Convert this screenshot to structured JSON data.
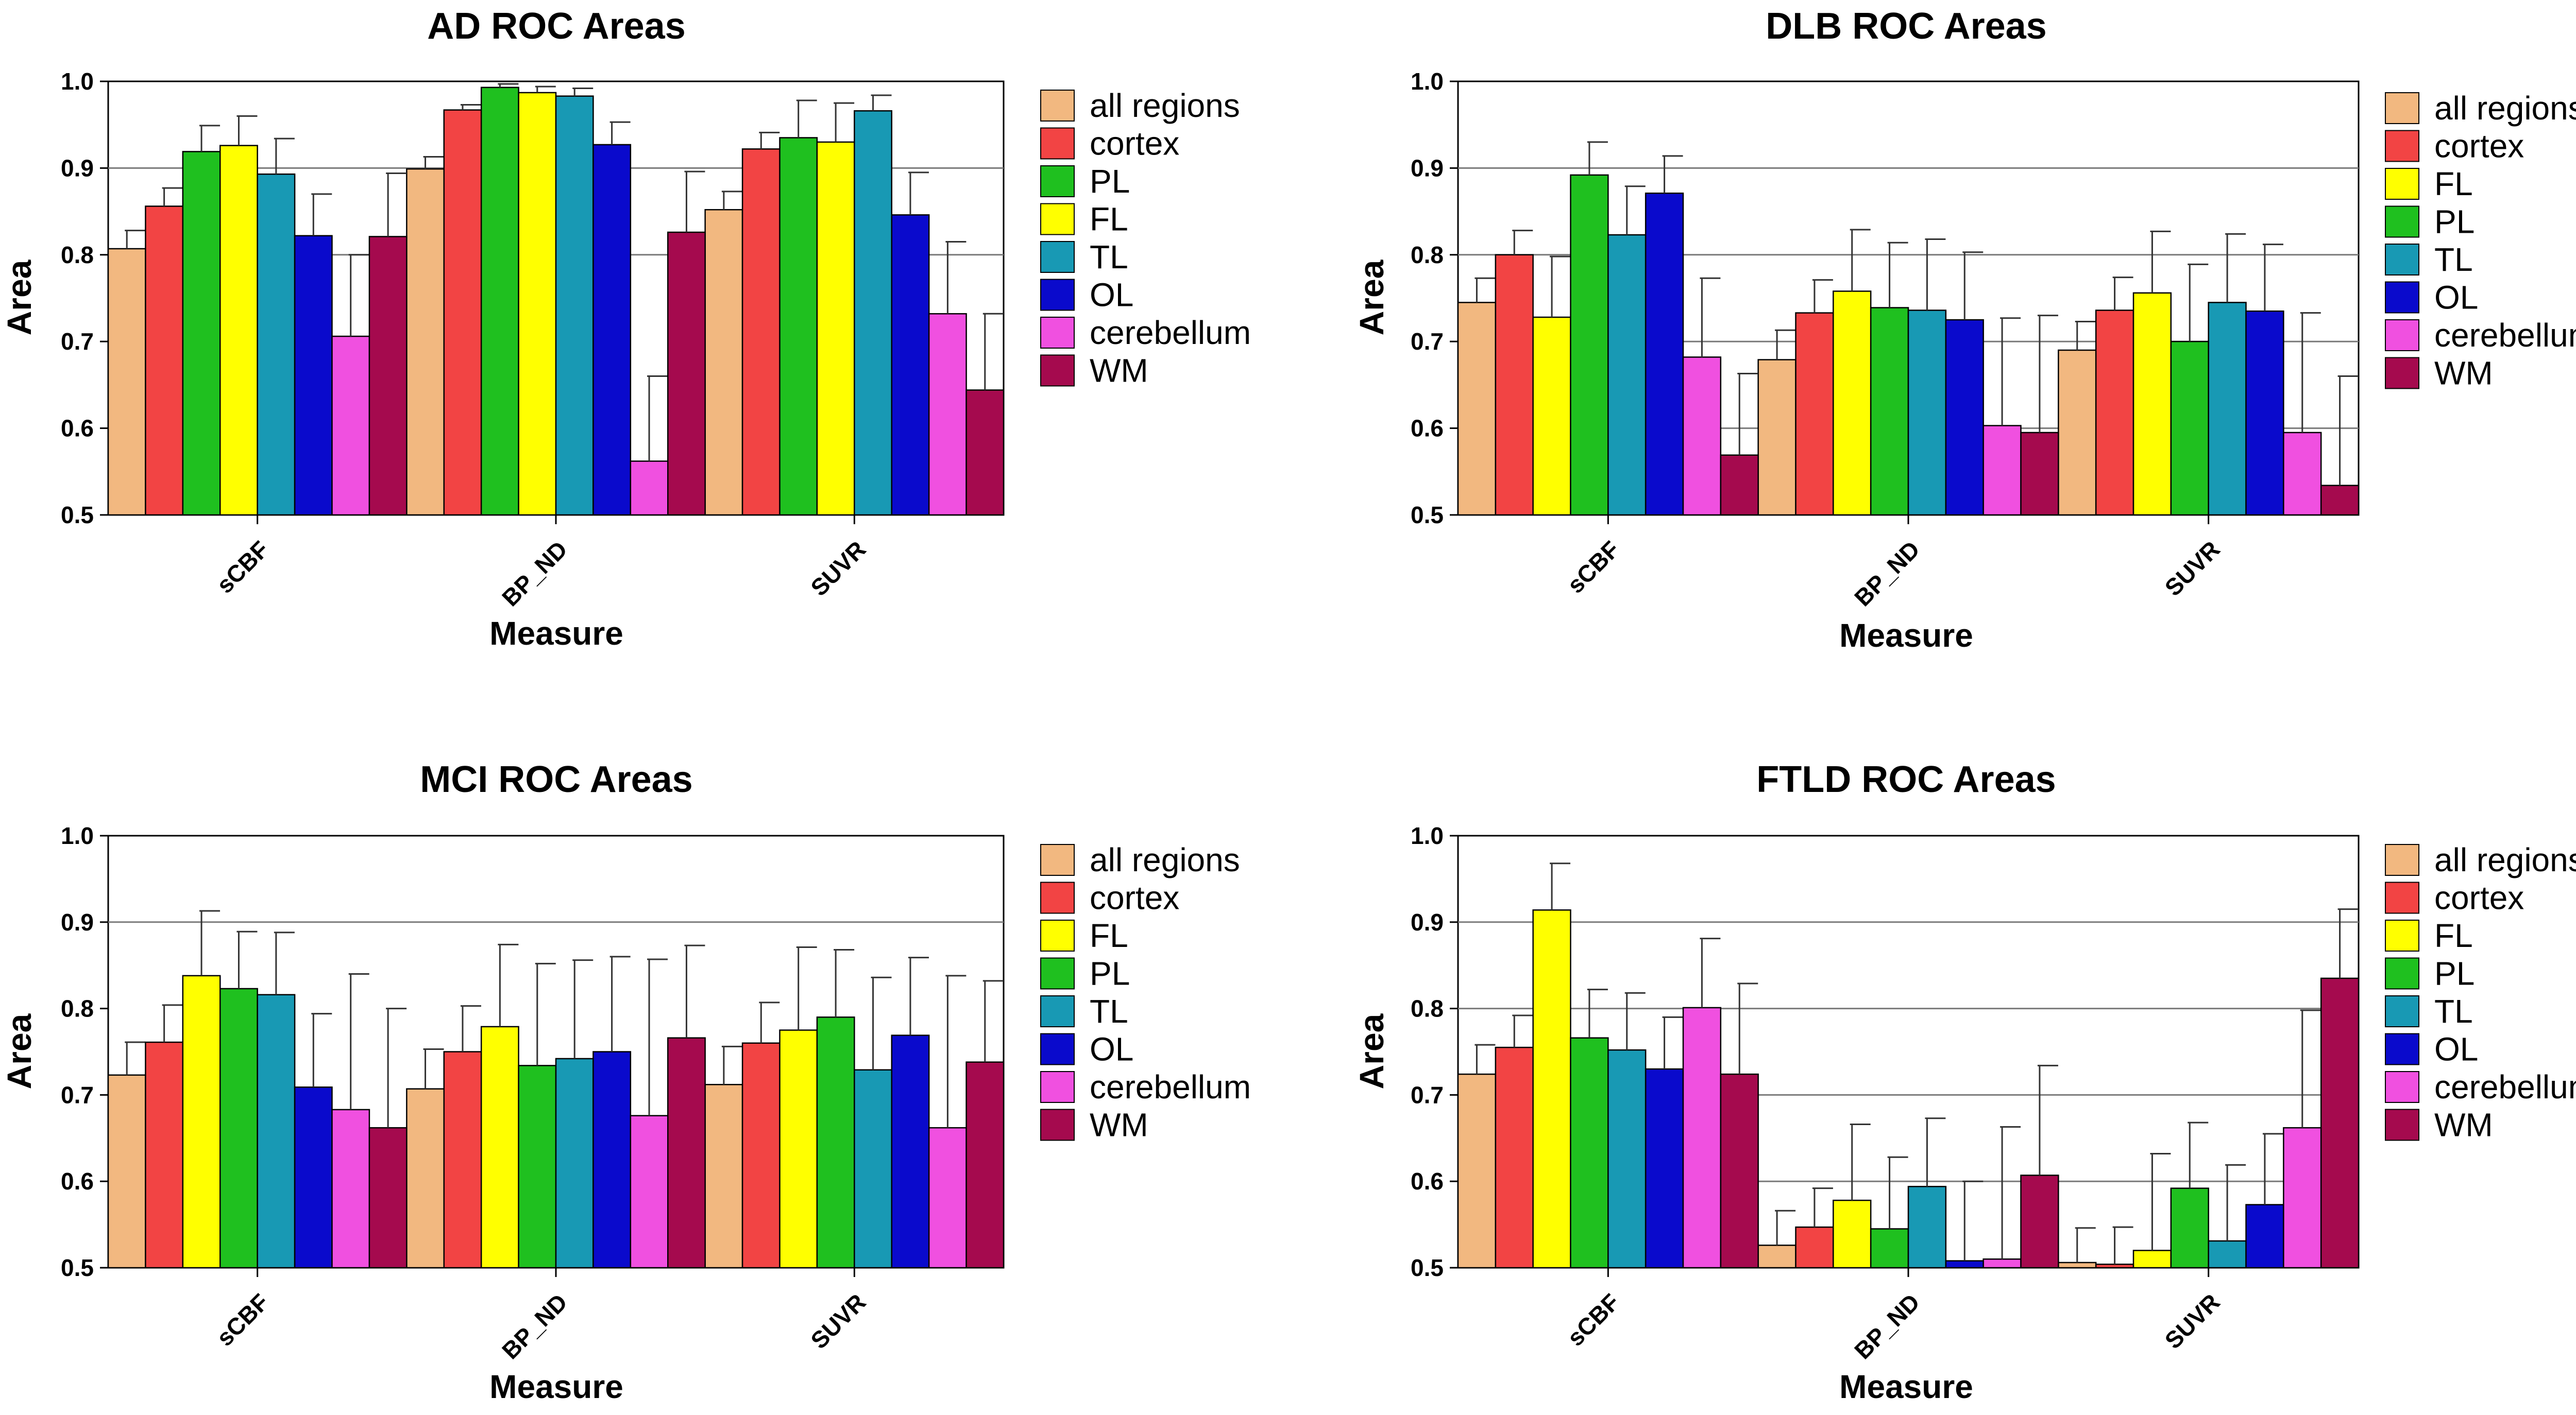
{
  "colors": {
    "all regions": "#F2B880",
    "cortex": "#F24444",
    "FL": "#FFFF00",
    "PL": "#1FC01F",
    "TL": "#1899B4",
    "OL": "#0A0ACC",
    "cerebellum": "#F050E0",
    "WM": "#A50A4E"
  },
  "chart_data": [
    {
      "id": "ad",
      "type": "bar",
      "title": "AD ROC Areas",
      "xlabel": "Measure",
      "ylabel": "Area",
      "ylim": [
        0.5,
        1.0
      ],
      "yticks": [
        "0.5",
        "0.6",
        "0.7",
        "0.8",
        "0.9",
        "1.0"
      ],
      "gridlines": [
        0.8,
        0.9
      ],
      "categories": [
        "sCBF",
        "BP_ND",
        "SUVR"
      ],
      "series": [
        {
          "name": "all regions",
          "values": [
            0.807,
            0.899,
            0.852
          ],
          "errors": [
            0.021,
            0.014,
            0.021
          ]
        },
        {
          "name": "cortex",
          "values": [
            0.856,
            0.967,
            0.922
          ],
          "errors": [
            0.021,
            0.006,
            0.019
          ]
        },
        {
          "name": "PL",
          "values": [
            0.919,
            0.993,
            0.935
          ],
          "errors": [
            0.03,
            0.004,
            0.043
          ]
        },
        {
          "name": "FL",
          "values": [
            0.926,
            0.987,
            0.93
          ],
          "errors": [
            0.034,
            0.007,
            0.045
          ]
        },
        {
          "name": "TL",
          "values": [
            0.893,
            0.983,
            0.966
          ],
          "errors": [
            0.041,
            0.009,
            0.018
          ]
        },
        {
          "name": "OL",
          "values": [
            0.822,
            0.927,
            0.846
          ],
          "errors": [
            0.048,
            0.026,
            0.049
          ]
        },
        {
          "name": "cerebellum",
          "values": [
            0.706,
            0.562,
            0.732
          ],
          "errors": [
            0.094,
            0.098,
            0.083
          ]
        },
        {
          "name": "WM",
          "values": [
            0.821,
            0.826,
            0.644
          ],
          "errors": [
            0.073,
            0.07,
            0.088
          ]
        }
      ]
    },
    {
      "id": "dlb",
      "type": "bar",
      "title": "DLB ROC Areas",
      "xlabel": "Measure",
      "ylabel": "Area",
      "ylim": [
        0.5,
        1.0
      ],
      "yticks": [
        "0.5",
        "0.6",
        "0.7",
        "0.8",
        "0.9",
        "1.0"
      ],
      "gridlines": [
        0.6,
        0.7,
        0.8,
        0.9
      ],
      "categories": [
        "sCBF",
        "BP_ND",
        "SUVR"
      ],
      "series": [
        {
          "name": "all regions",
          "values": [
            0.745,
            0.679,
            0.69
          ],
          "errors": [
            0.028,
            0.034,
            0.033
          ]
        },
        {
          "name": "cortex",
          "values": [
            0.8,
            0.733,
            0.736
          ],
          "errors": [
            0.028,
            0.038,
            0.038
          ]
        },
        {
          "name": "FL",
          "values": [
            0.728,
            0.758,
            0.756
          ],
          "errors": [
            0.07,
            0.071,
            0.071
          ]
        },
        {
          "name": "PL",
          "values": [
            0.892,
            0.739,
            0.7
          ],
          "errors": [
            0.038,
            0.075,
            0.089
          ]
        },
        {
          "name": "TL",
          "values": [
            0.823,
            0.736,
            0.745
          ],
          "errors": [
            0.056,
            0.082,
            0.079
          ]
        },
        {
          "name": "OL",
          "values": [
            0.871,
            0.725,
            0.735
          ],
          "errors": [
            0.043,
            0.078,
            0.077
          ]
        },
        {
          "name": "cerebellum",
          "values": [
            0.682,
            0.603,
            0.595
          ],
          "errors": [
            0.091,
            0.124,
            0.138
          ]
        },
        {
          "name": "WM",
          "values": [
            0.569,
            0.595,
            0.534
          ],
          "errors": [
            0.094,
            0.135,
            0.126
          ]
        }
      ]
    },
    {
      "id": "mci",
      "type": "bar",
      "title": "MCI ROC Areas",
      "xlabel": "Measure",
      "ylabel": "Area",
      "ylim": [
        0.5,
        1.0
      ],
      "yticks": [
        "0.5",
        "0.6",
        "0.7",
        "0.8",
        "0.9",
        "1.0"
      ],
      "gridlines": [
        0.9
      ],
      "categories": [
        "sCBF",
        "BP_ND",
        "SUVR"
      ],
      "series": [
        {
          "name": "all regions",
          "values": [
            0.723,
            0.707,
            0.712
          ],
          "errors": [
            0.038,
            0.046,
            0.044
          ]
        },
        {
          "name": "cortex",
          "values": [
            0.761,
            0.75,
            0.76
          ],
          "errors": [
            0.043,
            0.053,
            0.047
          ]
        },
        {
          "name": "FL",
          "values": [
            0.838,
            0.779,
            0.775
          ],
          "errors": [
            0.075,
            0.095,
            0.096
          ]
        },
        {
          "name": "PL",
          "values": [
            0.823,
            0.734,
            0.79
          ],
          "errors": [
            0.066,
            0.118,
            0.078
          ]
        },
        {
          "name": "TL",
          "values": [
            0.816,
            0.742,
            0.729
          ],
          "errors": [
            0.072,
            0.114,
            0.107
          ]
        },
        {
          "name": "OL",
          "values": [
            0.709,
            0.75,
            0.769
          ],
          "errors": [
            0.085,
            0.11,
            0.09
          ]
        },
        {
          "name": "cerebellum",
          "values": [
            0.683,
            0.676,
            0.662
          ],
          "errors": [
            0.157,
            0.181,
            0.176
          ]
        },
        {
          "name": "WM",
          "values": [
            0.662,
            0.766,
            0.738
          ],
          "errors": [
            0.138,
            0.107,
            0.094
          ]
        }
      ]
    },
    {
      "id": "ftld",
      "type": "bar",
      "title": "FTLD ROC Areas",
      "xlabel": "Measure",
      "ylabel": "Area",
      "ylim": [
        0.5,
        1.0
      ],
      "yticks": [
        "0.5",
        "0.6",
        "0.7",
        "0.8",
        "0.9",
        "1.0"
      ],
      "gridlines": [
        0.6,
        0.7,
        0.8,
        0.9
      ],
      "categories": [
        "sCBF",
        "BP_ND",
        "SUVR"
      ],
      "series": [
        {
          "name": "all regions",
          "values": [
            0.724,
            0.526,
            0.506
          ],
          "errors": [
            0.034,
            0.04,
            0.04
          ]
        },
        {
          "name": "cortex",
          "values": [
            0.755,
            0.547,
            0.504
          ],
          "errors": [
            0.037,
            0.045,
            0.043
          ]
        },
        {
          "name": "FL",
          "values": [
            0.914,
            0.578,
            0.52
          ],
          "errors": [
            0.054,
            0.088,
            0.112
          ]
        },
        {
          "name": "PL",
          "values": [
            0.766,
            0.545,
            0.592
          ],
          "errors": [
            0.056,
            0.083,
            0.076
          ]
        },
        {
          "name": "TL",
          "values": [
            0.752,
            0.594,
            0.531
          ],
          "errors": [
            0.066,
            0.079,
            0.088
          ]
        },
        {
          "name": "OL",
          "values": [
            0.73,
            0.508,
            0.573
          ],
          "errors": [
            0.06,
            0.092,
            0.082
          ]
        },
        {
          "name": "cerebellum",
          "values": [
            0.801,
            0.51,
            0.662
          ],
          "errors": [
            0.08,
            0.153,
            0.136
          ]
        },
        {
          "name": "WM",
          "values": [
            0.724,
            0.607,
            0.835
          ],
          "errors": [
            0.105,
            0.127,
            0.08
          ]
        }
      ]
    }
  ]
}
